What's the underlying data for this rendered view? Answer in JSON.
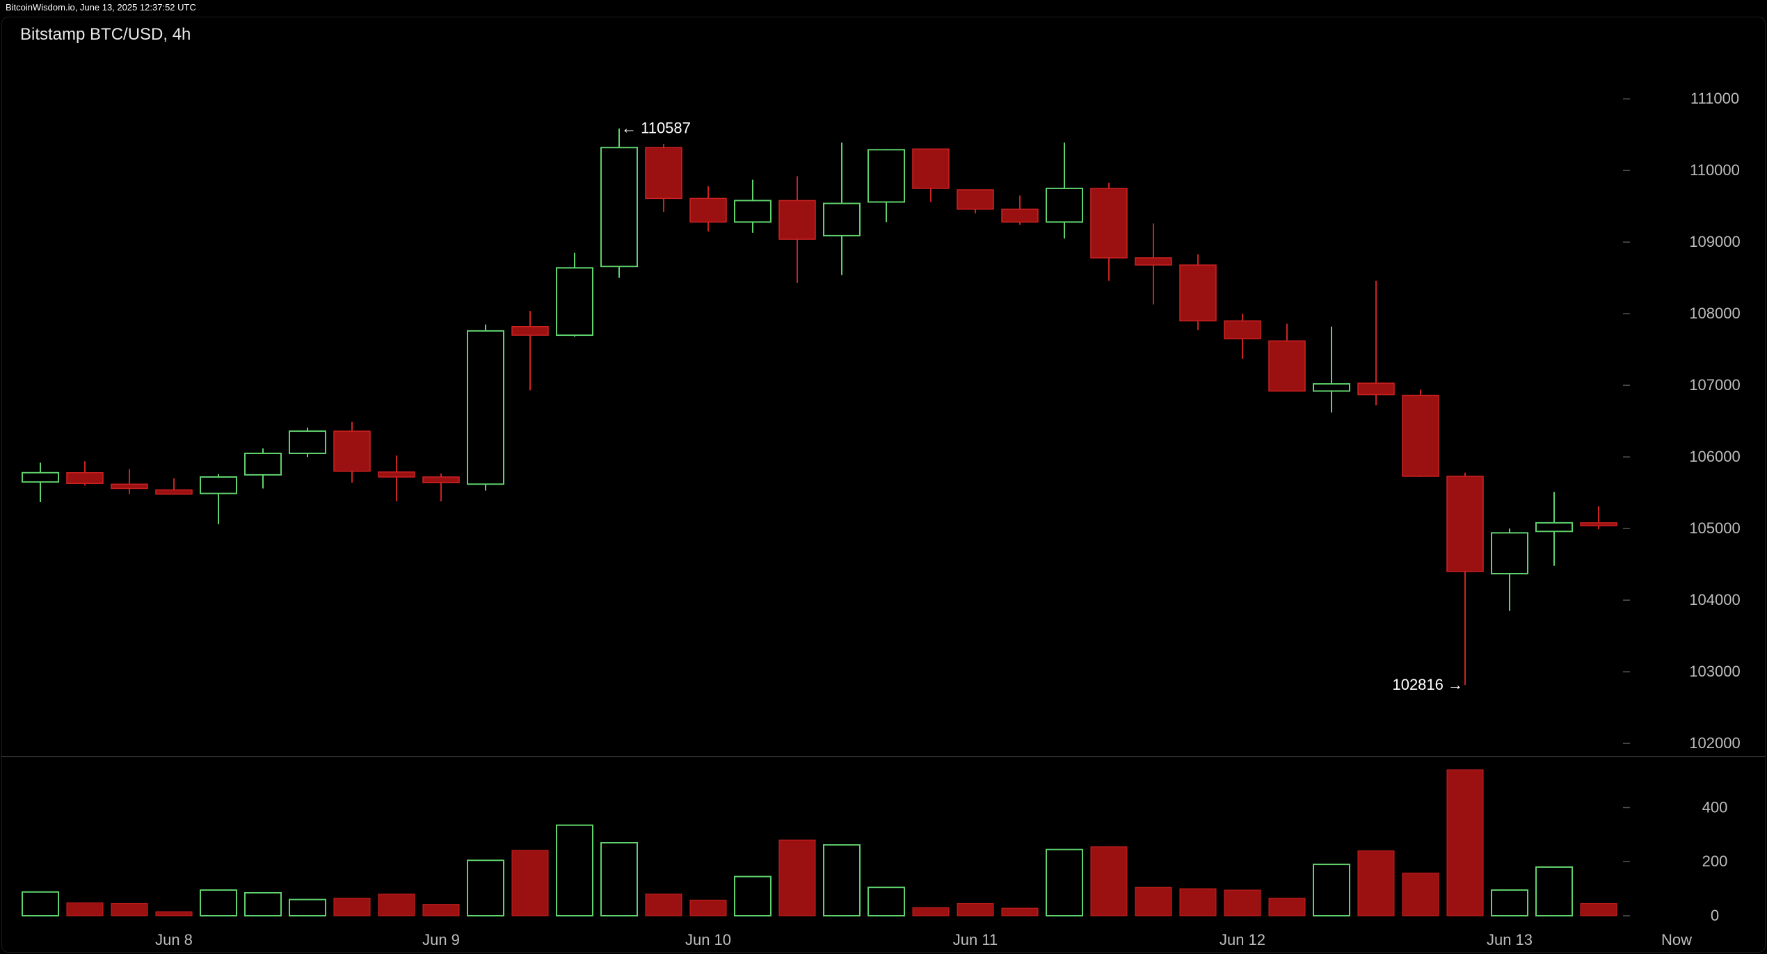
{
  "watermark": "BitcoinWisdom.io, June 13, 2025 12:37:52 UTC",
  "title": "Bitstamp BTC/USD, 4h",
  "colors": {
    "background": "#000000",
    "up": "#5fd16d",
    "down_fill": "#9b1010",
    "down_wick": "#cc2222",
    "axis_text": "#bdbdbd",
    "annotation_text": "#ffffff",
    "divider": "#3a3a3a"
  },
  "chart_data": {
    "type": "candlestick",
    "title": "Bitstamp BTC/USD, 4h",
    "price_axis": {
      "position": "right",
      "ticks": [
        102000,
        103000,
        104000,
        105000,
        106000,
        107000,
        108000,
        109000,
        110000,
        111000
      ],
      "range": [
        101700,
        111400
      ]
    },
    "volume_axis": {
      "position": "right",
      "ticks": [
        0,
        200,
        400
      ],
      "range": [
        0,
        540
      ]
    },
    "x_axis": {
      "labels": [
        {
          "text": "Jun 8",
          "index": 3
        },
        {
          "text": "Jun 9",
          "index": 9
        },
        {
          "text": "Jun 10",
          "index": 15
        },
        {
          "text": "Jun 11",
          "index": 21
        },
        {
          "text": "Jun 12",
          "index": 27
        },
        {
          "text": "Jun 13",
          "index": 33
        },
        {
          "text": "Now",
          "index": 36.75
        }
      ]
    },
    "annotations": [
      {
        "text": "← 110587",
        "index": 13,
        "value": 110587,
        "side": "right"
      },
      {
        "text": "102816 →",
        "index": 32,
        "value": 102816,
        "side": "left"
      }
    ],
    "candles": [
      {
        "o": 105650,
        "h": 105920,
        "l": 105370,
        "c": 105780,
        "v": 88
      },
      {
        "o": 105780,
        "h": 105940,
        "l": 105600,
        "c": 105630,
        "v": 48
      },
      {
        "o": 105620,
        "h": 105830,
        "l": 105480,
        "c": 105560,
        "v": 45
      },
      {
        "o": 105540,
        "h": 105700,
        "l": 105480,
        "c": 105480,
        "v": 15
      },
      {
        "o": 105490,
        "h": 105760,
        "l": 105060,
        "c": 105720,
        "v": 95
      },
      {
        "o": 105750,
        "h": 106120,
        "l": 105560,
        "c": 106050,
        "v": 85
      },
      {
        "o": 106050,
        "h": 106410,
        "l": 106000,
        "c": 106360,
        "v": 60
      },
      {
        "o": 106360,
        "h": 106490,
        "l": 105640,
        "c": 105800,
        "v": 65
      },
      {
        "o": 105790,
        "h": 106020,
        "l": 105380,
        "c": 105720,
        "v": 80
      },
      {
        "o": 105720,
        "h": 105770,
        "l": 105380,
        "c": 105640,
        "v": 42
      },
      {
        "o": 105620,
        "h": 107850,
        "l": 105530,
        "c": 107760,
        "v": 205
      },
      {
        "o": 107820,
        "h": 108040,
        "l": 106930,
        "c": 107700,
        "v": 242
      },
      {
        "o": 107700,
        "h": 108850,
        "l": 107680,
        "c": 108640,
        "v": 335
      },
      {
        "o": 108660,
        "h": 110587,
        "l": 108500,
        "c": 110320,
        "v": 270
      },
      {
        "o": 110320,
        "h": 110370,
        "l": 109420,
        "c": 109610,
        "v": 80
      },
      {
        "o": 109610,
        "h": 109780,
        "l": 109150,
        "c": 109280,
        "v": 58
      },
      {
        "o": 109280,
        "h": 109870,
        "l": 109130,
        "c": 109580,
        "v": 145
      },
      {
        "o": 109580,
        "h": 109920,
        "l": 108430,
        "c": 109040,
        "v": 280
      },
      {
        "o": 109090,
        "h": 110390,
        "l": 108540,
        "c": 109540,
        "v": 262
      },
      {
        "o": 109560,
        "h": 110300,
        "l": 109280,
        "c": 110290,
        "v": 105
      },
      {
        "o": 110300,
        "h": 110300,
        "l": 109560,
        "c": 109750,
        "v": 30
      },
      {
        "o": 109730,
        "h": 109730,
        "l": 109400,
        "c": 109460,
        "v": 45
      },
      {
        "o": 109460,
        "h": 109650,
        "l": 109240,
        "c": 109280,
        "v": 28
      },
      {
        "o": 109280,
        "h": 110390,
        "l": 109050,
        "c": 109750,
        "v": 245
      },
      {
        "o": 109750,
        "h": 109830,
        "l": 108460,
        "c": 108780,
        "v": 255
      },
      {
        "o": 108780,
        "h": 109260,
        "l": 108130,
        "c": 108680,
        "v": 105
      },
      {
        "o": 108680,
        "h": 108830,
        "l": 107770,
        "c": 107900,
        "v": 100
      },
      {
        "o": 107900,
        "h": 108000,
        "l": 107370,
        "c": 107650,
        "v": 95
      },
      {
        "o": 107620,
        "h": 107860,
        "l": 106930,
        "c": 106920,
        "v": 65
      },
      {
        "o": 106920,
        "h": 107820,
        "l": 106620,
        "c": 107020,
        "v": 190
      },
      {
        "o": 107030,
        "h": 108460,
        "l": 106720,
        "c": 106870,
        "v": 240
      },
      {
        "o": 106860,
        "h": 106940,
        "l": 105720,
        "c": 105730,
        "v": 158
      },
      {
        "o": 105730,
        "h": 105780,
        "l": 102816,
        "c": 104400,
        "v": 540
      },
      {
        "o": 104370,
        "h": 105000,
        "l": 103850,
        "c": 104940,
        "v": 95
      },
      {
        "o": 104960,
        "h": 105510,
        "l": 104480,
        "c": 105080,
        "v": 180
      },
      {
        "o": 105080,
        "h": 105310,
        "l": 104990,
        "c": 105040,
        "v": 45
      }
    ]
  }
}
